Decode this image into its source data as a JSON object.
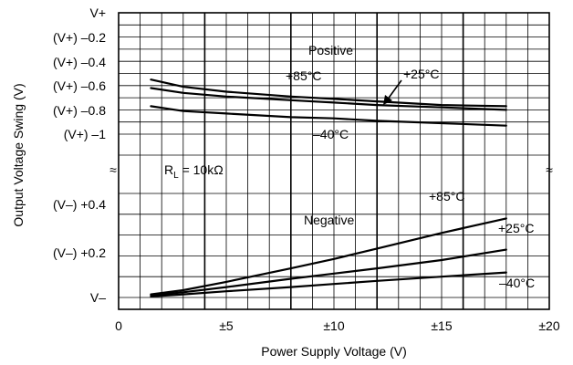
{
  "chart_data": {
    "type": "line",
    "xlabel": "Power Supply Voltage (V)",
    "ylabel": "Output Voltage Swing (V)",
    "xlim": [
      0,
      20
    ],
    "x_tick_labels": [
      "0",
      "±5",
      "±10",
      "±15",
      "±20"
    ],
    "grid": true,
    "upper_panel": {
      "y_tick_labels": [
        "V+",
        "(V+) –0.2",
        "(V+) –0.4",
        "(V+) –0.6",
        "(V+) –0.8",
        "(V+) –1"
      ],
      "ylim": [
        -1.0,
        0
      ],
      "series": [
        {
          "name": "+25°C",
          "x": [
            1.5,
            3,
            5,
            8,
            10,
            12,
            15,
            18
          ],
          "y": [
            -0.55,
            -0.61,
            -0.65,
            -0.69,
            -0.71,
            -0.73,
            -0.76,
            -0.77
          ]
        },
        {
          "name": "+85°C",
          "x": [
            1.5,
            3,
            5,
            8,
            10,
            12,
            15,
            18
          ],
          "y": [
            -0.62,
            -0.66,
            -0.69,
            -0.72,
            -0.74,
            -0.76,
            -0.78,
            -0.8
          ]
        },
        {
          "name": "–40°C",
          "x": [
            1.5,
            3,
            5,
            8,
            10,
            12,
            15,
            18
          ],
          "y": [
            -0.77,
            -0.81,
            -0.83,
            -0.86,
            -0.87,
            -0.89,
            -0.91,
            -0.93
          ]
        }
      ]
    },
    "lower_panel": {
      "y_tick_labels": [
        "(V–) +0.4",
        "(V–) +0.2",
        "V–"
      ],
      "ylim": [
        0,
        0.5
      ],
      "series": [
        {
          "name": "+85°C",
          "x": [
            1.5,
            3,
            5,
            8,
            10,
            12,
            15,
            18
          ],
          "y": [
            0.015,
            0.035,
            0.075,
            0.14,
            0.185,
            0.235,
            0.31,
            0.38
          ]
        },
        {
          "name": "+25°C",
          "x": [
            1.5,
            3,
            5,
            8,
            10,
            12,
            15,
            18
          ],
          "y": [
            0.01,
            0.025,
            0.05,
            0.09,
            0.115,
            0.14,
            0.18,
            0.23
          ]
        },
        {
          "name": "–40°C",
          "x": [
            1.5,
            3,
            5,
            8,
            10,
            12,
            15,
            18
          ],
          "y": [
            0.005,
            0.015,
            0.03,
            0.05,
            0.065,
            0.08,
            0.1,
            0.12
          ]
        }
      ]
    },
    "annotations": {
      "positive": "Positive",
      "negative": "Negative",
      "upper_p85": "+85°C",
      "upper_p25": "+25°C",
      "upper_m40": "–40°C",
      "lower_p85": "+85°C",
      "lower_p25": "+25°C",
      "lower_m40": "–40°C",
      "rl_prefix": "R",
      "rl_sub": "L",
      "rl_value": " = 10kΩ",
      "break_mark": "≈"
    }
  }
}
